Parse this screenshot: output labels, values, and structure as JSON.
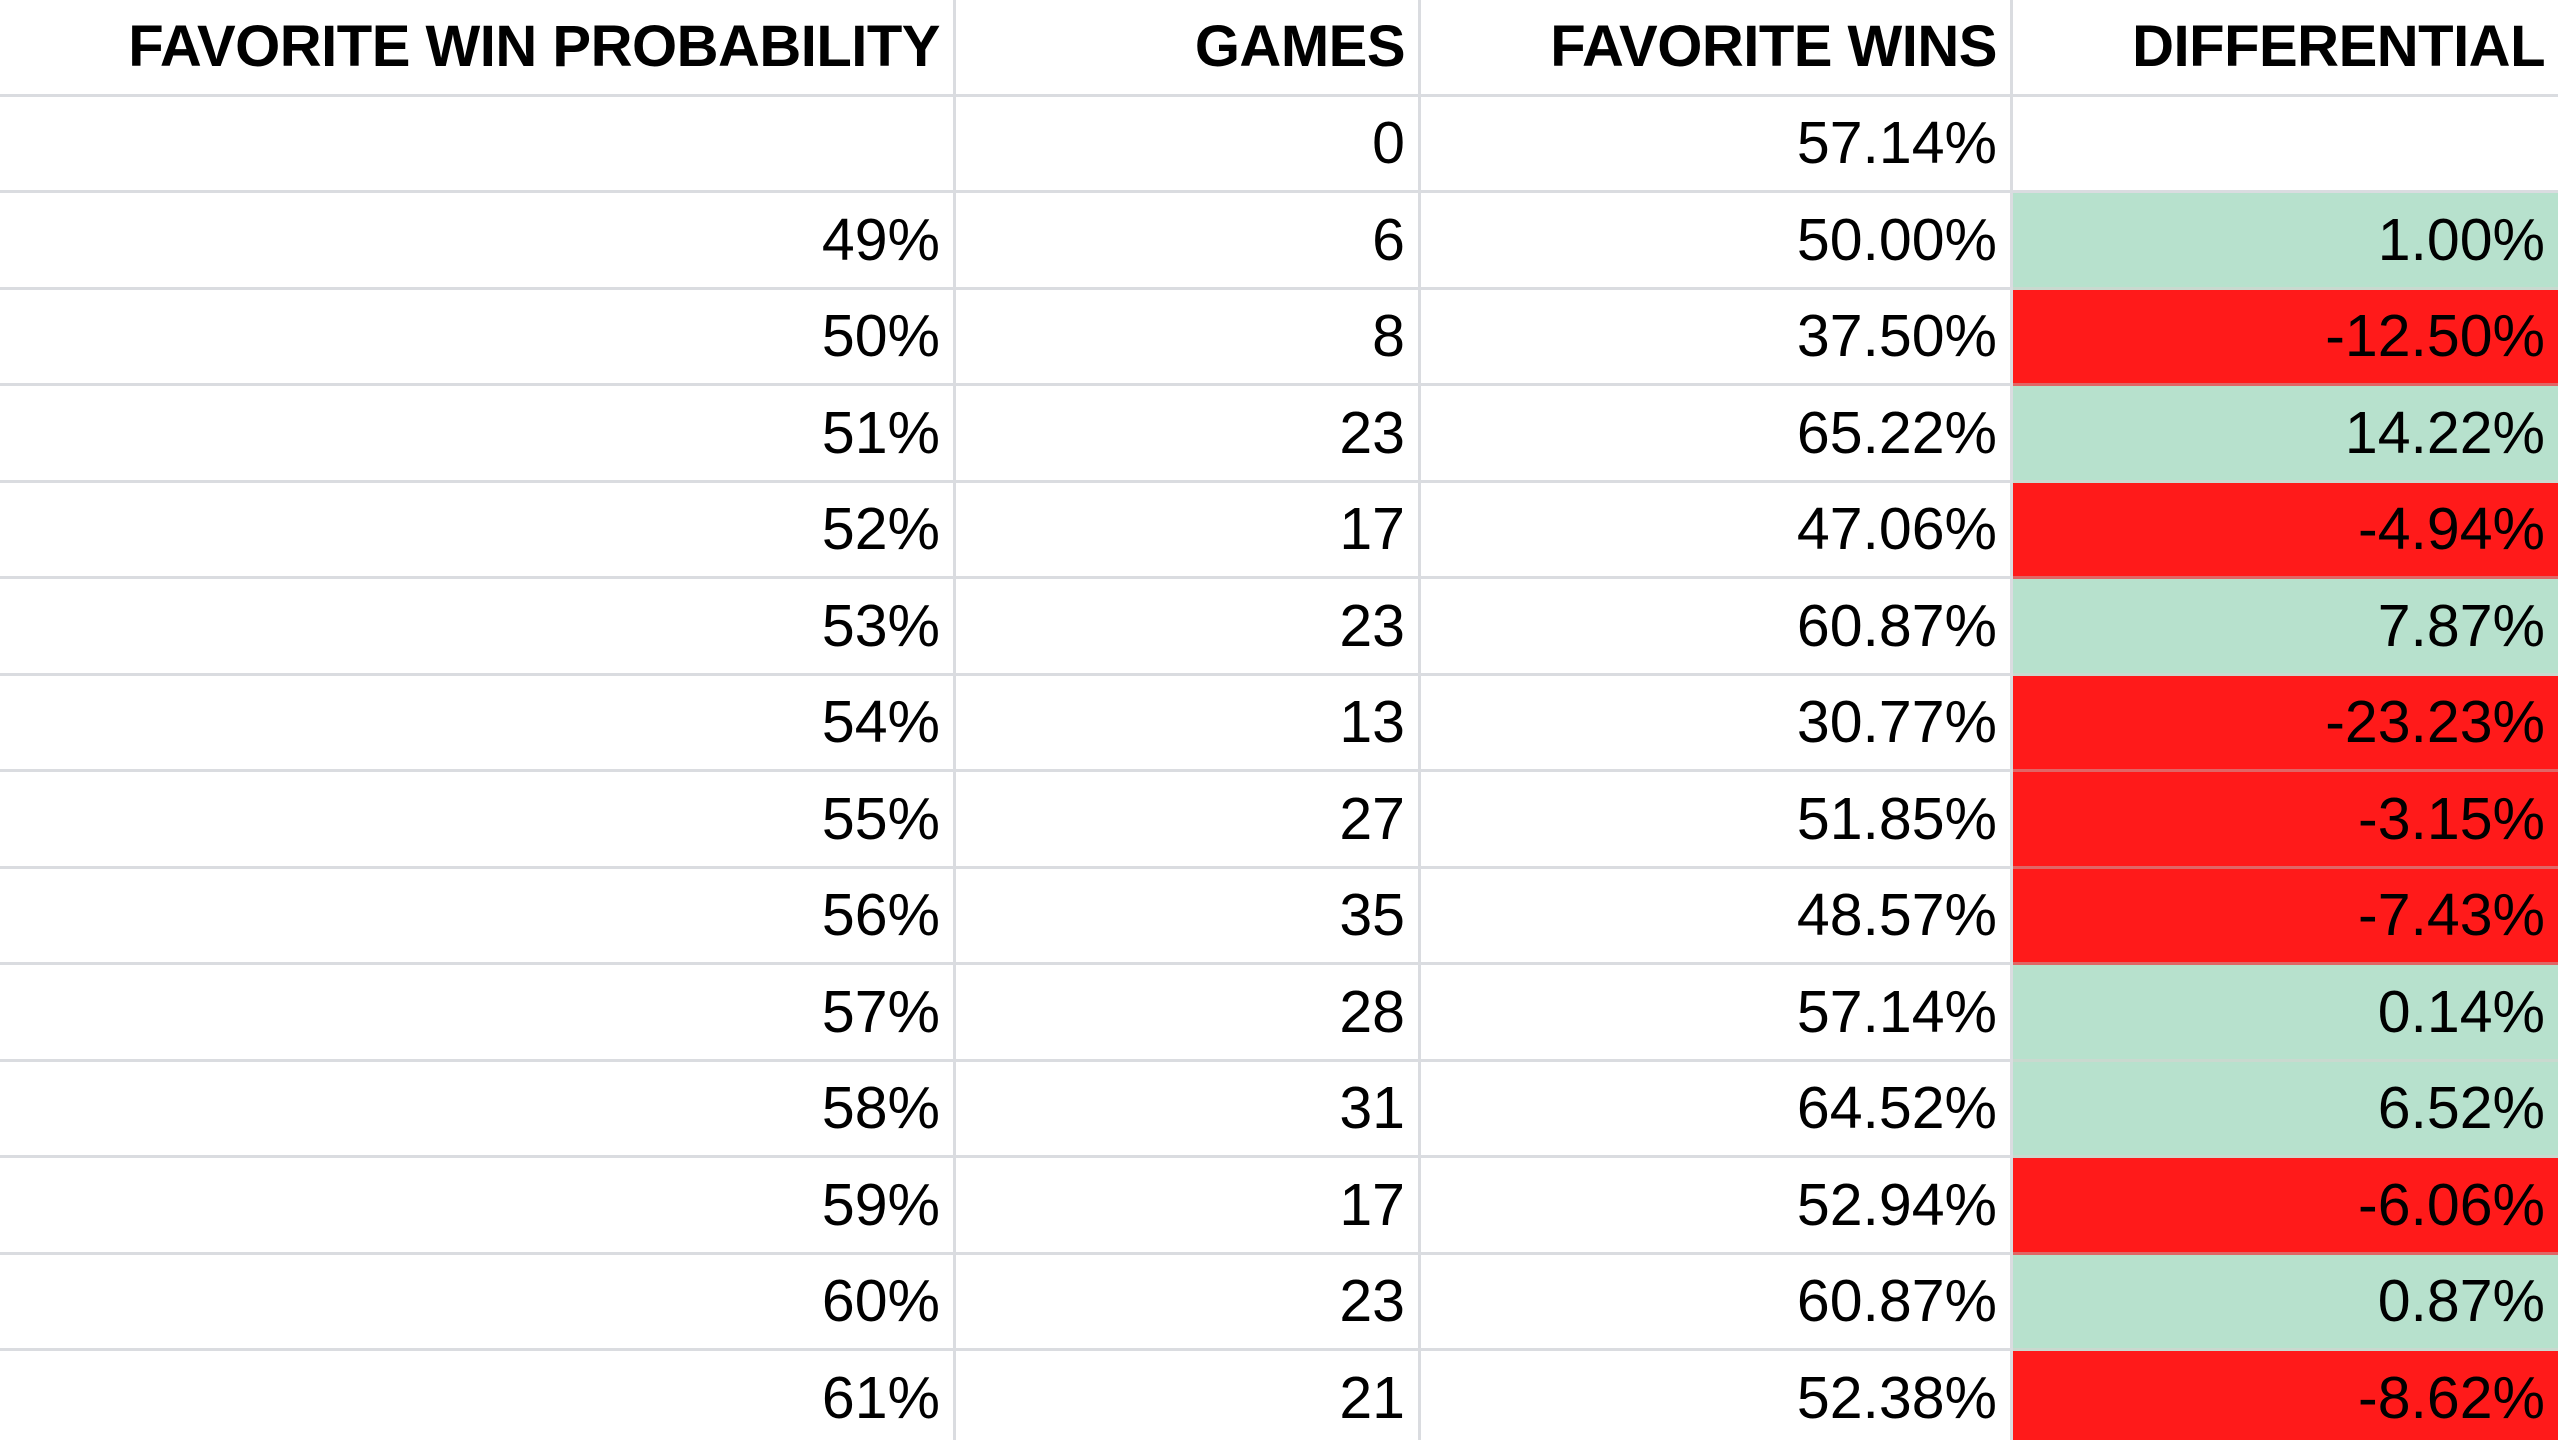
{
  "colors": {
    "positive": "#b7e1cd",
    "negative": "#ff1a1a",
    "gridline": "#dadce0"
  },
  "table": {
    "headers": [
      "FAVORITE WIN PROBABILITY",
      "GAMES",
      "FAVORITE WINS",
      "DIFFERENTIAL"
    ],
    "rows": [
      {
        "prob": "",
        "games": "0",
        "wins": "57.14%",
        "diff": "",
        "sign": "none"
      },
      {
        "prob": "49%",
        "games": "6",
        "wins": "50.00%",
        "diff": "1.00%",
        "sign": "pos"
      },
      {
        "prob": "50%",
        "games": "8",
        "wins": "37.50%",
        "diff": "-12.50%",
        "sign": "neg"
      },
      {
        "prob": "51%",
        "games": "23",
        "wins": "65.22%",
        "diff": "14.22%",
        "sign": "pos"
      },
      {
        "prob": "52%",
        "games": "17",
        "wins": "47.06%",
        "diff": "-4.94%",
        "sign": "neg"
      },
      {
        "prob": "53%",
        "games": "23",
        "wins": "60.87%",
        "diff": "7.87%",
        "sign": "pos"
      },
      {
        "prob": "54%",
        "games": "13",
        "wins": "30.77%",
        "diff": "-23.23%",
        "sign": "neg"
      },
      {
        "prob": "55%",
        "games": "27",
        "wins": "51.85%",
        "diff": "-3.15%",
        "sign": "neg"
      },
      {
        "prob": "56%",
        "games": "35",
        "wins": "48.57%",
        "diff": "-7.43%",
        "sign": "neg"
      },
      {
        "prob": "57%",
        "games": "28",
        "wins": "57.14%",
        "diff": "0.14%",
        "sign": "pos"
      },
      {
        "prob": "58%",
        "games": "31",
        "wins": "64.52%",
        "diff": "6.52%",
        "sign": "pos"
      },
      {
        "prob": "59%",
        "games": "17",
        "wins": "52.94%",
        "diff": "-6.06%",
        "sign": "neg"
      },
      {
        "prob": "60%",
        "games": "23",
        "wins": "60.87%",
        "diff": "0.87%",
        "sign": "pos"
      },
      {
        "prob": "61%",
        "games": "21",
        "wins": "52.38%",
        "diff": "-8.62%",
        "sign": "neg"
      }
    ]
  }
}
